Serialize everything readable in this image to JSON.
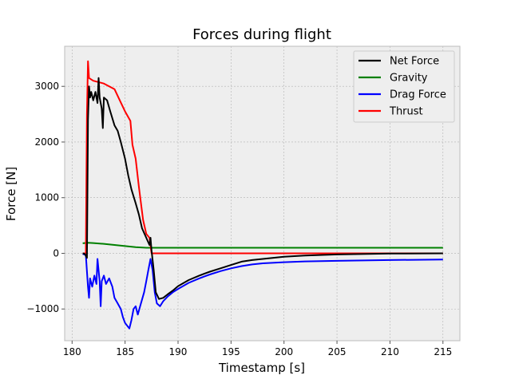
{
  "chart_data": {
    "type": "line",
    "title": "Forces during flight",
    "xlabel": "Timestamp [s]",
    "ylabel": "Force [N]",
    "xlim": [
      179.3,
      216.6
    ],
    "ylim": [
      -1570,
      3720
    ],
    "xticks": [
      180,
      185,
      190,
      195,
      200,
      205,
      210,
      215
    ],
    "yticks": [
      -1000,
      0,
      1000,
      2000,
      3000
    ],
    "grid": true,
    "legend_position": "top-right",
    "background": "#eeeeee",
    "series": [
      {
        "name": "Net Force",
        "color": "#000000",
        "points": [
          [
            181.0,
            0
          ],
          [
            181.2,
            -10
          ],
          [
            181.4,
            -80
          ],
          [
            181.5,
            2400
          ],
          [
            181.6,
            3000
          ],
          [
            181.7,
            2800
          ],
          [
            181.8,
            2900
          ],
          [
            182.0,
            2750
          ],
          [
            182.2,
            2900
          ],
          [
            182.4,
            2700
          ],
          [
            182.5,
            3150
          ],
          [
            182.6,
            2800
          ],
          [
            182.8,
            2600
          ],
          [
            182.9,
            2250
          ],
          [
            183.0,
            2800
          ],
          [
            183.3,
            2750
          ],
          [
            183.6,
            2550
          ],
          [
            184.0,
            2300
          ],
          [
            184.3,
            2200
          ],
          [
            184.6,
            2000
          ],
          [
            185.0,
            1700
          ],
          [
            185.3,
            1400
          ],
          [
            185.6,
            1150
          ],
          [
            186.0,
            900
          ],
          [
            186.3,
            700
          ],
          [
            186.6,
            450
          ],
          [
            187.0,
            280
          ],
          [
            187.3,
            150
          ],
          [
            187.4,
            280
          ],
          [
            187.5,
            50
          ],
          [
            187.7,
            -300
          ],
          [
            187.9,
            -700
          ],
          [
            188.2,
            -820
          ],
          [
            188.6,
            -800
          ],
          [
            189.0,
            -740
          ],
          [
            189.5,
            -670
          ],
          [
            190.0,
            -590
          ],
          [
            191.0,
            -480
          ],
          [
            192.0,
            -400
          ],
          [
            193.0,
            -330
          ],
          [
            194.0,
            -270
          ],
          [
            195.0,
            -210
          ],
          [
            196.0,
            -150
          ],
          [
            197.0,
            -120
          ],
          [
            198.0,
            -100
          ],
          [
            199.0,
            -80
          ],
          [
            200.0,
            -60
          ],
          [
            202.0,
            -40
          ],
          [
            205.0,
            -20
          ],
          [
            210.0,
            -5
          ],
          [
            215.0,
            0
          ]
        ]
      },
      {
        "name": "Gravity",
        "color": "#008000",
        "points": [
          [
            181.0,
            180
          ],
          [
            181.5,
            190
          ],
          [
            182.0,
            185
          ],
          [
            183.0,
            170
          ],
          [
            184.0,
            150
          ],
          [
            185.0,
            130
          ],
          [
            186.0,
            110
          ],
          [
            187.0,
            100
          ],
          [
            188.0,
            100
          ],
          [
            190.0,
            100
          ],
          [
            200.0,
            100
          ],
          [
            210.0,
            100
          ],
          [
            215.0,
            100
          ]
        ]
      },
      {
        "name": "Drag Force",
        "color": "#0000ff",
        "points": [
          [
            181.0,
            -10
          ],
          [
            181.3,
            -30
          ],
          [
            181.5,
            -600
          ],
          [
            181.6,
            -800
          ],
          [
            181.7,
            -450
          ],
          [
            181.9,
            -600
          ],
          [
            182.1,
            -400
          ],
          [
            182.3,
            -550
          ],
          [
            182.4,
            -100
          ],
          [
            182.6,
            -500
          ],
          [
            182.7,
            -950
          ],
          [
            182.8,
            -500
          ],
          [
            183.0,
            -400
          ],
          [
            183.2,
            -550
          ],
          [
            183.5,
            -450
          ],
          [
            183.8,
            -600
          ],
          [
            184.0,
            -800
          ],
          [
            184.3,
            -900
          ],
          [
            184.6,
            -1000
          ],
          [
            184.8,
            -1150
          ],
          [
            185.0,
            -1250
          ],
          [
            185.2,
            -1300
          ],
          [
            185.4,
            -1350
          ],
          [
            185.6,
            -1200
          ],
          [
            185.8,
            -1000
          ],
          [
            186.0,
            -950
          ],
          [
            186.2,
            -1100
          ],
          [
            186.5,
            -900
          ],
          [
            186.8,
            -700
          ],
          [
            187.0,
            -500
          ],
          [
            187.2,
            -300
          ],
          [
            187.4,
            -100
          ],
          [
            187.6,
            -300
          ],
          [
            187.8,
            -700
          ],
          [
            188.0,
            -900
          ],
          [
            188.3,
            -950
          ],
          [
            188.6,
            -860
          ],
          [
            189.0,
            -780
          ],
          [
            189.5,
            -700
          ],
          [
            190.0,
            -640
          ],
          [
            191.0,
            -530
          ],
          [
            192.0,
            -450
          ],
          [
            193.0,
            -380
          ],
          [
            194.0,
            -320
          ],
          [
            195.0,
            -270
          ],
          [
            196.0,
            -230
          ],
          [
            197.0,
            -200
          ],
          [
            198.0,
            -180
          ],
          [
            200.0,
            -160
          ],
          [
            202.0,
            -145
          ],
          [
            205.0,
            -135
          ],
          [
            210.0,
            -120
          ],
          [
            215.0,
            -110
          ]
        ]
      },
      {
        "name": "Thrust",
        "color": "#ff0000",
        "points": [
          [
            181.0,
            0
          ],
          [
            181.3,
            0
          ],
          [
            181.4,
            2500
          ],
          [
            181.5,
            3450
          ],
          [
            181.6,
            3150
          ],
          [
            182.0,
            3100
          ],
          [
            183.0,
            3050
          ],
          [
            184.0,
            2950
          ],
          [
            184.5,
            2750
          ],
          [
            185.0,
            2550
          ],
          [
            185.5,
            2380
          ],
          [
            185.7,
            1950
          ],
          [
            186.0,
            1700
          ],
          [
            186.3,
            1200
          ],
          [
            186.7,
            600
          ],
          [
            187.0,
            350
          ],
          [
            187.3,
            280
          ],
          [
            187.5,
            0
          ],
          [
            188.0,
            0
          ],
          [
            190.0,
            0
          ],
          [
            200.0,
            0
          ],
          [
            210.0,
            0
          ],
          [
            215.0,
            0
          ]
        ]
      }
    ]
  }
}
